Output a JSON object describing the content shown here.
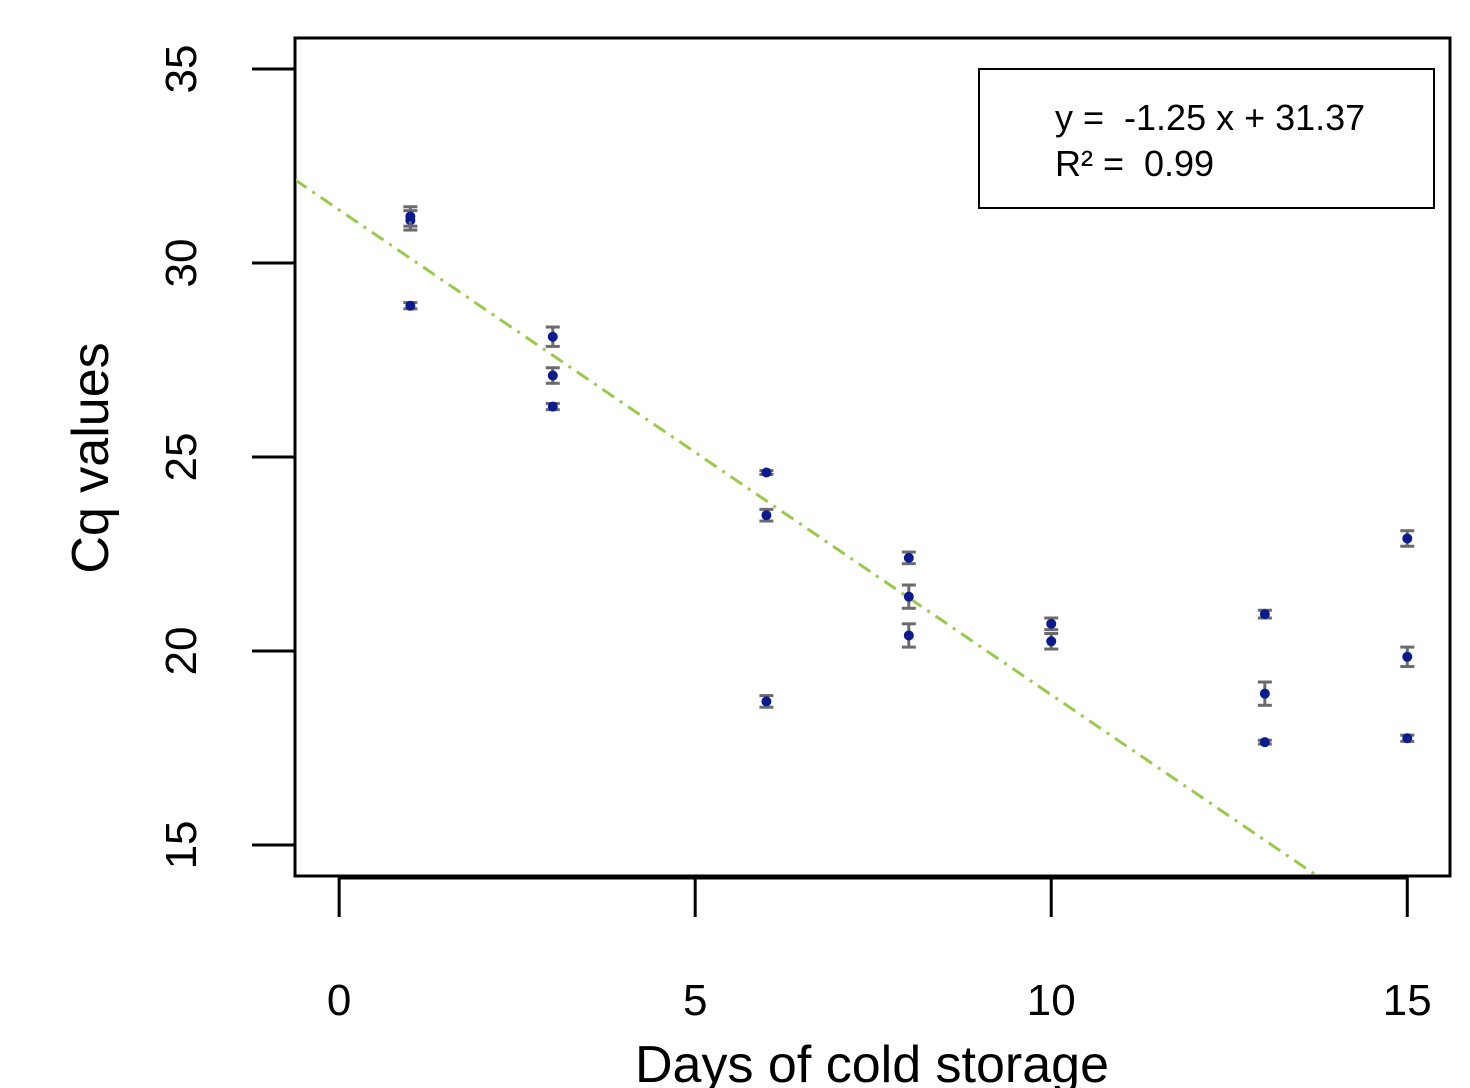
{
  "chart_data": {
    "type": "scatter",
    "title": "",
    "xlabel": "Days of cold storage",
    "ylabel": "Cq values",
    "xlim": [
      -0.62,
      15.6
    ],
    "ylim": [
      14.2,
      35.8
    ],
    "x_ticks": [
      0,
      5,
      10,
      15
    ],
    "x_tick_labels": [
      "0",
      "5",
      "10",
      "15"
    ],
    "y_ticks": [
      15,
      20,
      25,
      30,
      35
    ],
    "y_tick_labels": [
      "15",
      "20",
      "25",
      "30",
      "35"
    ],
    "grid": false,
    "points": [
      {
        "x": 1,
        "y": 31.1,
        "err": 0.25
      },
      {
        "x": 1,
        "y": 31.2,
        "err": 0.25
      },
      {
        "x": 1,
        "y": 28.9,
        "err": 0.08
      },
      {
        "x": 3,
        "y": 28.1,
        "err": 0.25
      },
      {
        "x": 3,
        "y": 27.1,
        "err": 0.2
      },
      {
        "x": 3,
        "y": 26.3,
        "err": 0.08
      },
      {
        "x": 6,
        "y": 24.6,
        "err": 0.05
      },
      {
        "x": 6,
        "y": 23.5,
        "err": 0.15
      },
      {
        "x": 6,
        "y": 18.7,
        "err": 0.15
      },
      {
        "x": 8,
        "y": 22.4,
        "err": 0.15
      },
      {
        "x": 8,
        "y": 21.4,
        "err": 0.3
      },
      {
        "x": 8,
        "y": 20.4,
        "err": 0.3
      },
      {
        "x": 10,
        "y": 20.7,
        "err": 0.15
      },
      {
        "x": 10,
        "y": 20.25,
        "err": 0.2
      },
      {
        "x": 13,
        "y": 20.95,
        "err": 0.1
      },
      {
        "x": 13,
        "y": 18.9,
        "err": 0.3
      },
      {
        "x": 13,
        "y": 17.65,
        "err": 0.05
      },
      {
        "x": 15,
        "y": 22.9,
        "err": 0.2
      },
      {
        "x": 15,
        "y": 19.85,
        "err": 0.25
      },
      {
        "x": 15,
        "y": 17.75,
        "err": 0.08
      }
    ],
    "fit": {
      "slope": -1.25,
      "intercept": 31.37
    },
    "annotation": {
      "equation": "y =  -1.25 x + 31.37",
      "r2": "R² =  0.99"
    },
    "colors": {
      "point": "#0b1a8c",
      "errorbar": "#6b6b6b",
      "fit_line": "#9bc94e",
      "axis": "#000000"
    }
  }
}
